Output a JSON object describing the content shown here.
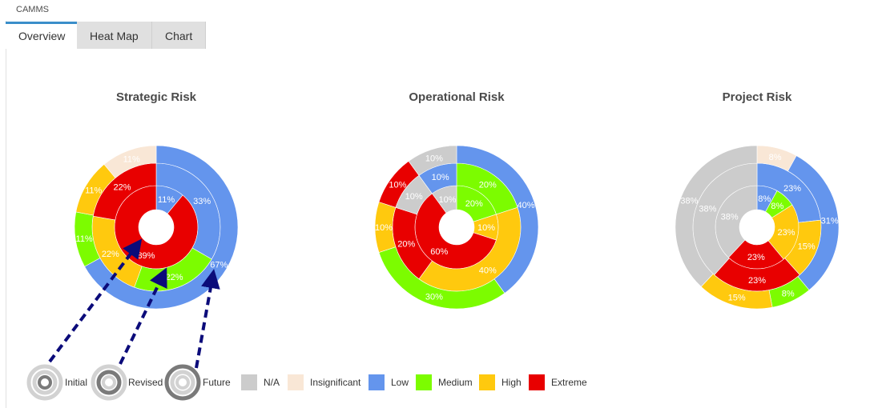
{
  "app": {
    "title": "CAMMS"
  },
  "tabs": [
    {
      "label": "Overview",
      "active": true
    },
    {
      "label": "Heat Map",
      "active": false
    },
    {
      "label": "Chart",
      "active": false
    }
  ],
  "colors": {
    "na": "#cccccc",
    "insignificant": "#f9e7d6",
    "low": "#6495ed",
    "medium": "#7cfc00",
    "high": "#ffc90e",
    "extreme": "#e80000"
  },
  "legend": {
    "rings": [
      {
        "label": "Initial",
        "icon": "initial-ring-icon"
      },
      {
        "label": "Revised",
        "icon": "revised-ring-icon"
      },
      {
        "label": "Future",
        "icon": "future-ring-icon"
      }
    ],
    "categories": [
      {
        "key": "na",
        "label": "N/A"
      },
      {
        "key": "insignificant",
        "label": "Insignificant"
      },
      {
        "key": "low",
        "label": "Low"
      },
      {
        "key": "medium",
        "label": "Medium"
      },
      {
        "key": "high",
        "label": "High"
      },
      {
        "key": "extreme",
        "label": "Extreme"
      }
    ]
  },
  "chart_data": [
    {
      "type": "pie",
      "title": "Strategic Risk",
      "rings": {
        "initial": [
          {
            "category": "low",
            "value": 11,
            "label": "11%"
          },
          {
            "category": "extreme",
            "value": 89,
            "label": "89%"
          }
        ],
        "revised": [
          {
            "category": "low",
            "value": 33,
            "label": "33%"
          },
          {
            "category": "medium",
            "value": 22,
            "label": "22%"
          },
          {
            "category": "high",
            "value": 22,
            "label": "22%"
          },
          {
            "category": "extreme",
            "value": 22,
            "label": "22%"
          }
        ],
        "future": [
          {
            "category": "low",
            "value": 67,
            "label": "67%"
          },
          {
            "category": "medium",
            "value": 11,
            "label": "11%"
          },
          {
            "category": "high",
            "value": 11,
            "label": "11%"
          },
          {
            "category": "insignificant",
            "value": 11,
            "label": "11%"
          }
        ]
      }
    },
    {
      "type": "pie",
      "title": "Operational Risk",
      "rings": {
        "initial": [
          {
            "category": "medium",
            "value": 20,
            "label": "20%"
          },
          {
            "category": "high",
            "value": 10,
            "label": "10%"
          },
          {
            "category": "extreme",
            "value": 60,
            "label": "60%"
          },
          {
            "category": "na",
            "value": 10,
            "label": "10%"
          }
        ],
        "revised": [
          {
            "category": "medium",
            "value": 20,
            "label": "20%"
          },
          {
            "category": "high",
            "value": 40,
            "label": "40%"
          },
          {
            "category": "extreme",
            "value": 20,
            "label": "20%"
          },
          {
            "category": "na",
            "value": 10,
            "label": "10%"
          },
          {
            "category": "low",
            "value": 10,
            "label": "10%"
          }
        ],
        "future": [
          {
            "category": "low",
            "value": 40,
            "label": "40%"
          },
          {
            "category": "medium",
            "value": 30,
            "label": "30%"
          },
          {
            "category": "high",
            "value": 10,
            "label": "10%"
          },
          {
            "category": "extreme",
            "value": 10,
            "label": "10%"
          },
          {
            "category": "na",
            "value": 10,
            "label": "10%"
          }
        ]
      }
    },
    {
      "type": "pie",
      "title": "Project Risk",
      "rings": {
        "initial": [
          {
            "category": "low",
            "value": 8,
            "label": "8%"
          },
          {
            "category": "medium",
            "value": 8,
            "label": "8%"
          },
          {
            "category": "high",
            "value": 23,
            "label": "23%"
          },
          {
            "category": "extreme",
            "value": 23,
            "label": "23%"
          },
          {
            "category": "na",
            "value": 38,
            "label": "38%"
          }
        ],
        "revised": [
          {
            "category": "low",
            "value": 23,
            "label": "23%"
          },
          {
            "category": "high",
            "value": 15,
            "label": "15%"
          },
          {
            "category": "extreme",
            "value": 23,
            "label": "23%"
          },
          {
            "category": "na",
            "value": 38,
            "label": "38%"
          }
        ],
        "future": [
          {
            "category": "insignificant",
            "value": 8,
            "label": "8%"
          },
          {
            "category": "low",
            "value": 31,
            "label": "31%"
          },
          {
            "category": "medium",
            "value": 8,
            "label": "8%"
          },
          {
            "category": "high",
            "value": 15,
            "label": "15%"
          },
          {
            "category": "na",
            "value": 38,
            "label": "38%"
          }
        ]
      }
    }
  ]
}
